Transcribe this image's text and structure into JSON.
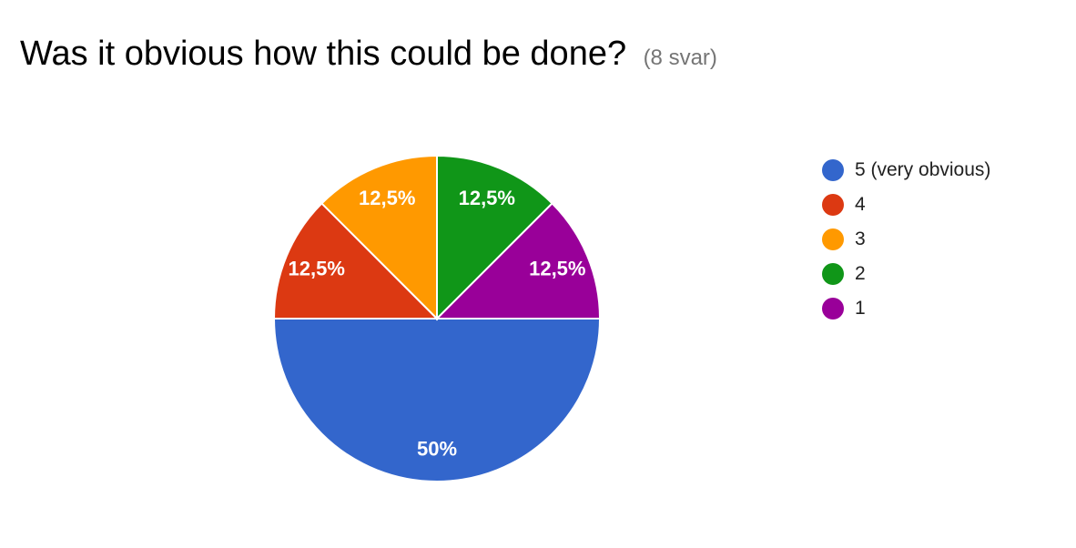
{
  "header": {
    "title": "Was it obvious how this could be done?",
    "response_count": "(8 svar)"
  },
  "chart_data": {
    "type": "pie",
    "categories": [
      "5 (very obvious)",
      "4",
      "3",
      "2",
      "1"
    ],
    "values": [
      50,
      12.5,
      12.5,
      12.5,
      12.5
    ],
    "value_labels": [
      "50%",
      "12,5%",
      "12,5%",
      "12,5%",
      "12,5%"
    ],
    "colors": [
      "#3366cc",
      "#dc3912",
      "#ff9900",
      "#109618",
      "#990099"
    ],
    "legend_position": "right"
  }
}
